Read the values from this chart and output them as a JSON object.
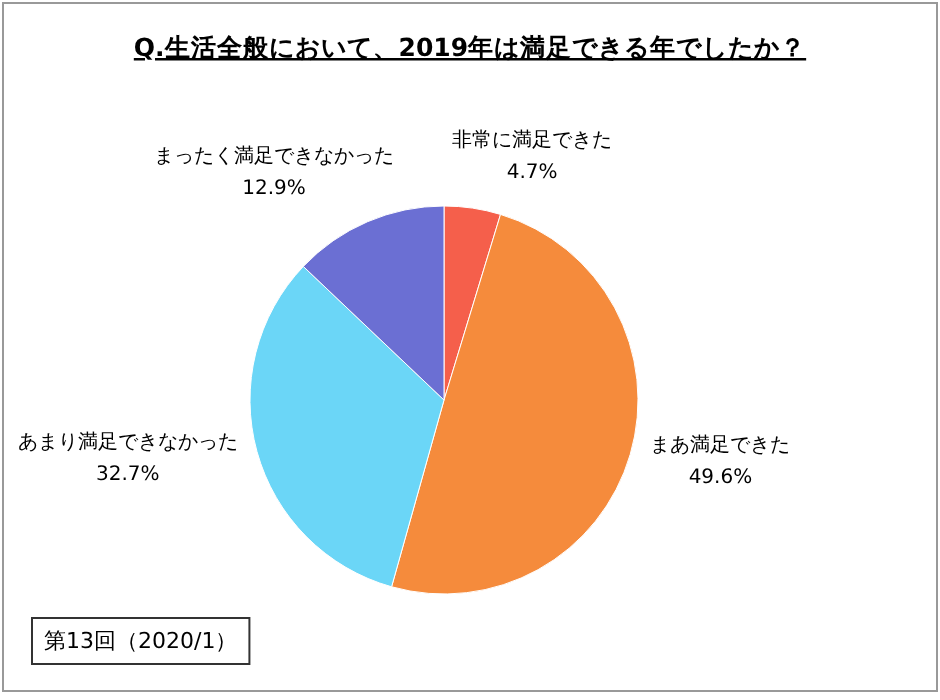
{
  "chart_data": {
    "type": "pie",
    "title": "Q.生活全般において、2019年は満足できる年でしたか？",
    "categories": [
      "非常に満足できた",
      "まあ満足できた",
      "あまり満足できなかった",
      "まったく満足できなかった"
    ],
    "values": [
      4.7,
      49.6,
      32.7,
      12.9
    ],
    "value_labels": [
      "4.7%",
      "49.6%",
      "32.7%",
      "12.9%"
    ],
    "colors": [
      "#f55f4b",
      "#f58b3c",
      "#6bd6f7",
      "#6b6fd3"
    ],
    "annotations": [
      "第13回（2020/1）"
    ]
  }
}
